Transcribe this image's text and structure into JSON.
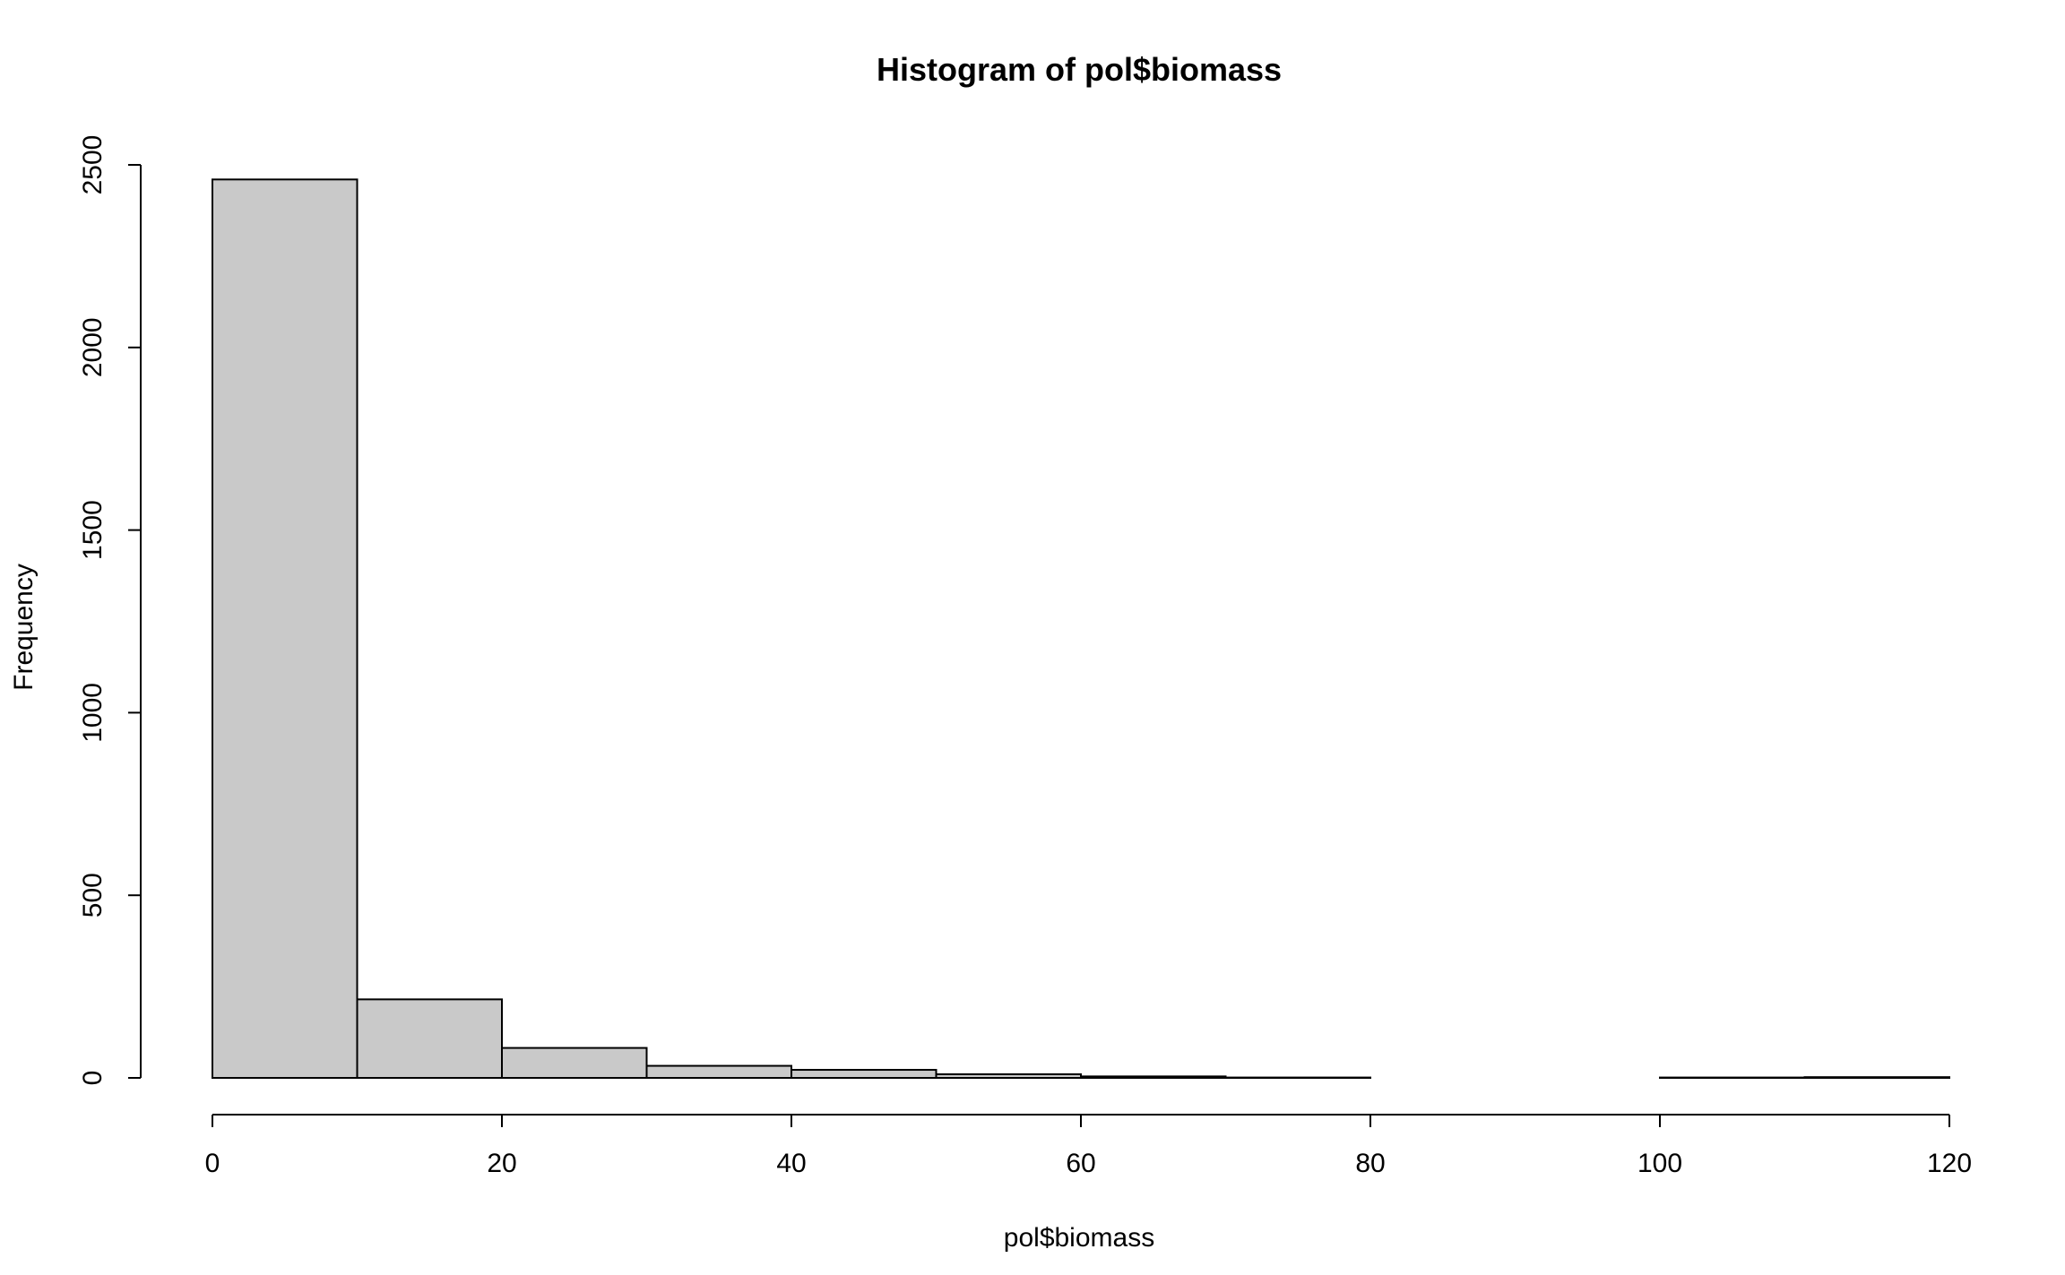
{
  "chart_data": {
    "type": "bar",
    "title": "Histogram of pol$biomass",
    "xlabel": "pol$biomass",
    "ylabel": "Frequency",
    "bins": [
      {
        "start": 0,
        "end": 10,
        "count": 2460
      },
      {
        "start": 10,
        "end": 20,
        "count": 215
      },
      {
        "start": 20,
        "end": 30,
        "count": 82
      },
      {
        "start": 30,
        "end": 40,
        "count": 33
      },
      {
        "start": 40,
        "end": 50,
        "count": 22
      },
      {
        "start": 50,
        "end": 60,
        "count": 10
      },
      {
        "start": 60,
        "end": 70,
        "count": 4
      },
      {
        "start": 70,
        "end": 80,
        "count": 1
      },
      {
        "start": 80,
        "end": 90,
        "count": 0
      },
      {
        "start": 90,
        "end": 100,
        "count": 0
      },
      {
        "start": 100,
        "end": 110,
        "count": 1
      },
      {
        "start": 110,
        "end": 120,
        "count": 2
      }
    ],
    "xlim": [
      0,
      120
    ],
    "ylim": [
      0,
      2500
    ],
    "x_ticks": [
      "0",
      "20",
      "40",
      "60",
      "80",
      "100",
      "120"
    ],
    "y_ticks": [
      "0",
      "500",
      "1000",
      "1500",
      "2000",
      "2500"
    ],
    "bar_fill": "#c9c9c9",
    "bar_stroke": "#000000",
    "grid": false,
    "legend": "none"
  }
}
